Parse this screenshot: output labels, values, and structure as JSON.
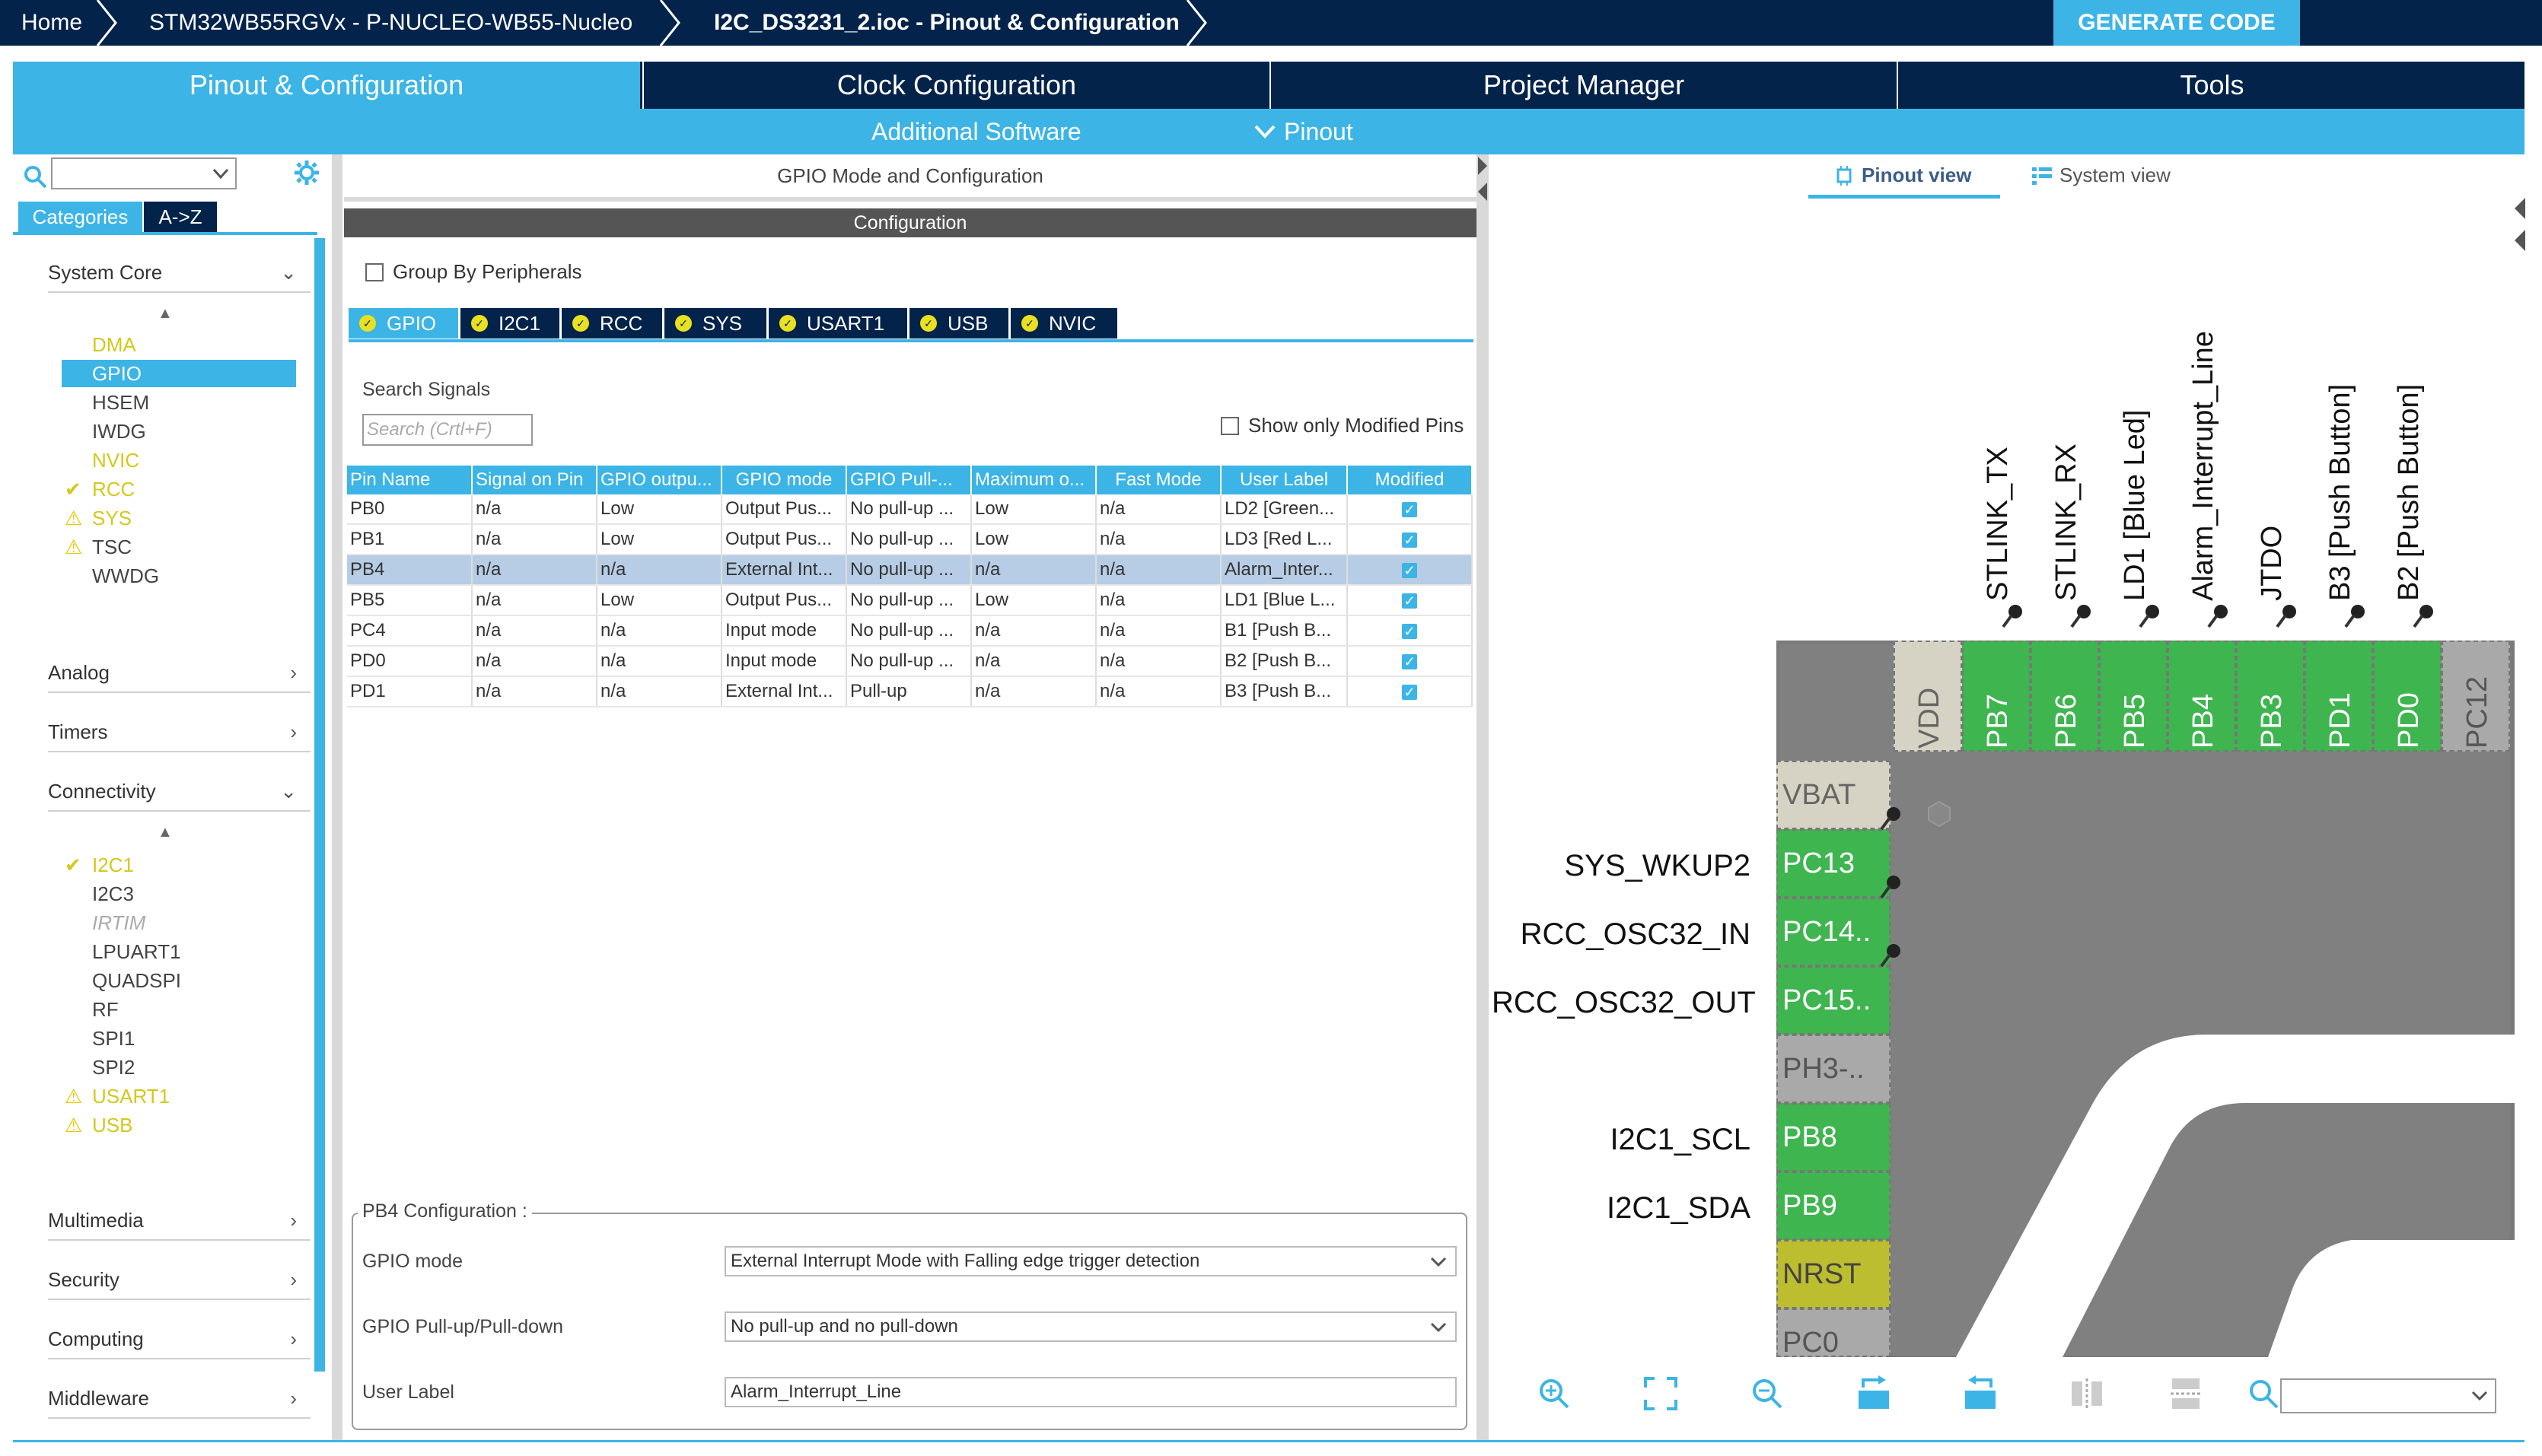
{
  "breadcrumb": {
    "home": "Home",
    "board": "STM32WB55RGVx  -  P-NUCLEO-WB55-Nucleo",
    "file": "I2C_DS3231_2.ioc - Pinout & Configuration",
    "generate": "GENERATE CODE"
  },
  "main_tabs": [
    "Pinout & Configuration",
    "Clock Configuration",
    "Project Manager",
    "Tools"
  ],
  "sub_menu": {
    "additional_software": "Additional Software",
    "pinout": "Pinout"
  },
  "left": {
    "search_placeholder": "",
    "tab_categories": "Categories",
    "tab_az": "A->Z",
    "system_core": "System Core",
    "system_core_items": [
      {
        "label": "DMA",
        "state": "yellow"
      },
      {
        "label": "GPIO",
        "state": "selected"
      },
      {
        "label": "HSEM",
        "state": "normal"
      },
      {
        "label": "IWDG",
        "state": "normal"
      },
      {
        "label": "NVIC",
        "state": "yellow"
      },
      {
        "label": "RCC",
        "state": "check"
      },
      {
        "label": "SYS",
        "state": "warn"
      },
      {
        "label": "TSC",
        "state": "warn-normal"
      },
      {
        "label": "WWDG",
        "state": "normal"
      }
    ],
    "analog": "Analog",
    "timers": "Timers",
    "connectivity": "Connectivity",
    "connectivity_items": [
      {
        "label": "I2C1",
        "state": "check"
      },
      {
        "label": "I2C3",
        "state": "normal"
      },
      {
        "label": "IRTIM",
        "state": "disabled"
      },
      {
        "label": "LPUART1",
        "state": "normal"
      },
      {
        "label": "QUADSPI",
        "state": "normal"
      },
      {
        "label": "RF",
        "state": "normal"
      },
      {
        "label": "SPI1",
        "state": "normal"
      },
      {
        "label": "SPI2",
        "state": "normal"
      },
      {
        "label": "USART1",
        "state": "warn"
      },
      {
        "label": "USB",
        "state": "warn"
      }
    ],
    "multimedia": "Multimedia",
    "security": "Security",
    "computing": "Computing",
    "middleware": "Middleware"
  },
  "middle": {
    "header": "GPIO Mode and Configuration",
    "config_bar": "Configuration",
    "group_by": "Group By Peripherals",
    "periph_tabs": [
      "GPIO",
      "I2C1",
      "RCC",
      "SYS",
      "USART1",
      "USB",
      "NVIC"
    ],
    "search_signals": "Search Signals",
    "search_placeholder": "Search (Crtl+F)",
    "show_modified": "Show only Modified Pins",
    "columns": [
      "Pin Name",
      "Signal on Pin",
      "GPIO outpu...",
      "GPIO mode",
      "GPIO Pull-...",
      "Maximum o...",
      "Fast Mode",
      "User Label",
      "Modified"
    ],
    "rows": [
      [
        "PB0",
        "n/a",
        "Low",
        "Output Pus...",
        "No pull-up ...",
        "Low",
        "n/a",
        "LD2 [Green..."
      ],
      [
        "PB1",
        "n/a",
        "Low",
        "Output Pus...",
        "No pull-up ...",
        "Low",
        "n/a",
        "LD3 [Red L..."
      ],
      [
        "PB4",
        "n/a",
        "n/a",
        "External Int...",
        "No pull-up ...",
        "n/a",
        "n/a",
        "Alarm_Inter..."
      ],
      [
        "PB5",
        "n/a",
        "Low",
        "Output Pus...",
        "No pull-up ...",
        "Low",
        "n/a",
        "LD1 [Blue L..."
      ],
      [
        "PC4",
        "n/a",
        "n/a",
        "Input mode",
        "No pull-up ...",
        "n/a",
        "n/a",
        "B1 [Push B..."
      ],
      [
        "PD0",
        "n/a",
        "n/a",
        "Input mode",
        "No pull-up ...",
        "n/a",
        "n/a",
        "B2 [Push B..."
      ],
      [
        "PD1",
        "n/a",
        "n/a",
        "External Int...",
        "Pull-up",
        "n/a",
        "n/a",
        "B3 [Push B..."
      ]
    ],
    "pin_config_title": "PB4 Configuration :",
    "gpio_mode_label": "GPIO mode",
    "gpio_mode_value": "External Interrupt Mode with Falling edge trigger detection",
    "pull_label": "GPIO Pull-up/Pull-down",
    "pull_value": "No pull-up and no pull-down",
    "user_label_label": "User Label",
    "user_label_value": "Alarm_Interrupt_Line"
  },
  "right": {
    "pinout_view": "Pinout view",
    "system_view": "System view",
    "top_labels": [
      "STLINK_TX",
      "STLINK_RX",
      "LD1 [Blue Led]",
      "Alarm_Interrupt_Line",
      "JTDO",
      "B3 [Push Button]",
      "B2 [Push Button]"
    ],
    "top_pins": [
      "VDD",
      "PB7",
      "PB6",
      "PB5",
      "PB4",
      "PB3",
      "PD1",
      "PD0",
      "PC12"
    ],
    "left_pins": [
      "VBAT",
      "PC13",
      "PC14..",
      "PC15..",
      "PH3-..",
      "PB8",
      "PB9",
      "NRST",
      "PC0"
    ],
    "left_labels": [
      "",
      "SYS_WKUP2",
      "RCC_OSC32_IN",
      "RCC_OSC32_OUT",
      "",
      "I2C1_SCL",
      "I2C1_SDA",
      "",
      ""
    ]
  },
  "colors": {
    "navy": "#03234b",
    "accent": "#3cb4e6",
    "pin_green": "#3fb550"
  }
}
